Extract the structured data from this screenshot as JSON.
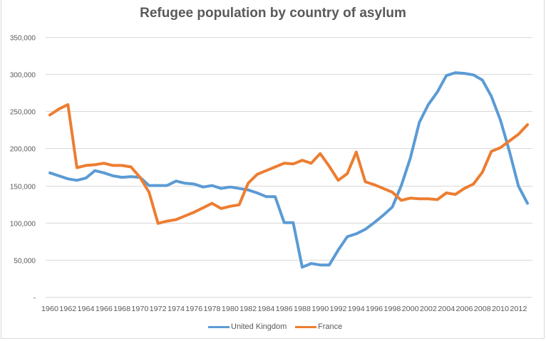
{
  "chart_data": {
    "type": "line",
    "title": "Refugee population  by country  of asylum",
    "xlabel": "",
    "ylabel": "",
    "ylim": [
      0,
      350000
    ],
    "yticks": [
      0,
      50000,
      100000,
      150000,
      200000,
      250000,
      300000,
      350000
    ],
    "ytick_labels": [
      "-",
      "50,000",
      "100,000",
      "150,000",
      "200,000",
      "250,000",
      "300,000",
      "350,000"
    ],
    "grid": true,
    "legend_position": "bottom",
    "x": [
      1960,
      1961,
      1962,
      1963,
      1964,
      1965,
      1966,
      1967,
      1968,
      1969,
      1970,
      1971,
      1972,
      1973,
      1974,
      1975,
      1976,
      1977,
      1978,
      1979,
      1980,
      1981,
      1982,
      1983,
      1984,
      1985,
      1986,
      1987,
      1988,
      1989,
      1990,
      1991,
      1992,
      1993,
      1994,
      1995,
      1996,
      1997,
      1998,
      1999,
      2000,
      2001,
      2002,
      2003,
      2004,
      2005,
      2006,
      2007,
      2008,
      2009,
      2010,
      2011,
      2012,
      2013
    ],
    "xtick_labels": [
      "1960",
      "1962",
      "1964",
      "1966",
      "1968",
      "1970",
      "1972",
      "1974",
      "1976",
      "1978",
      "1980",
      "1982",
      "1984",
      "1986",
      "1988",
      "1990",
      "1992",
      "1994",
      "1996",
      "1998",
      "2000",
      "2002",
      "2004",
      "2006",
      "2008",
      "2010",
      "2012"
    ],
    "series": [
      {
        "name": "United Kingdom",
        "color": "#5B9BD5",
        "values": [
          167000,
          163000,
          159000,
          157000,
          160000,
          170000,
          167000,
          163000,
          161000,
          162000,
          161000,
          150000,
          150000,
          150000,
          156000,
          153000,
          152000,
          148000,
          150000,
          146000,
          148000,
          146000,
          144000,
          140000,
          135000,
          135000,
          100000,
          100000,
          40000,
          45000,
          43000,
          43000,
          63000,
          81000,
          85000,
          91000,
          100000,
          110000,
          121000,
          150000,
          187000,
          235000,
          259000,
          276000,
          298000,
          302000,
          301000,
          299000,
          292000,
          270000,
          238000,
          196000,
          149000,
          126000
        ]
      },
      {
        "name": "France",
        "color": "#ED7D31",
        "values": [
          245000,
          253000,
          259000,
          174000,
          177000,
          178000,
          180000,
          177000,
          177000,
          175000,
          161000,
          141000,
          99000,
          102000,
          104000,
          109000,
          114000,
          120000,
          126000,
          119000,
          122000,
          124000,
          153000,
          165000,
          170000,
          175000,
          180000,
          179000,
          184000,
          180000,
          193000,
          176000,
          157000,
          166000,
          195000,
          155000,
          151000,
          146000,
          141000,
          130000,
          133000,
          132000,
          132000,
          131000,
          140000,
          138000,
          146000,
          152000,
          168000,
          196000,
          201000,
          210000,
          219000,
          232000
        ]
      }
    ]
  }
}
